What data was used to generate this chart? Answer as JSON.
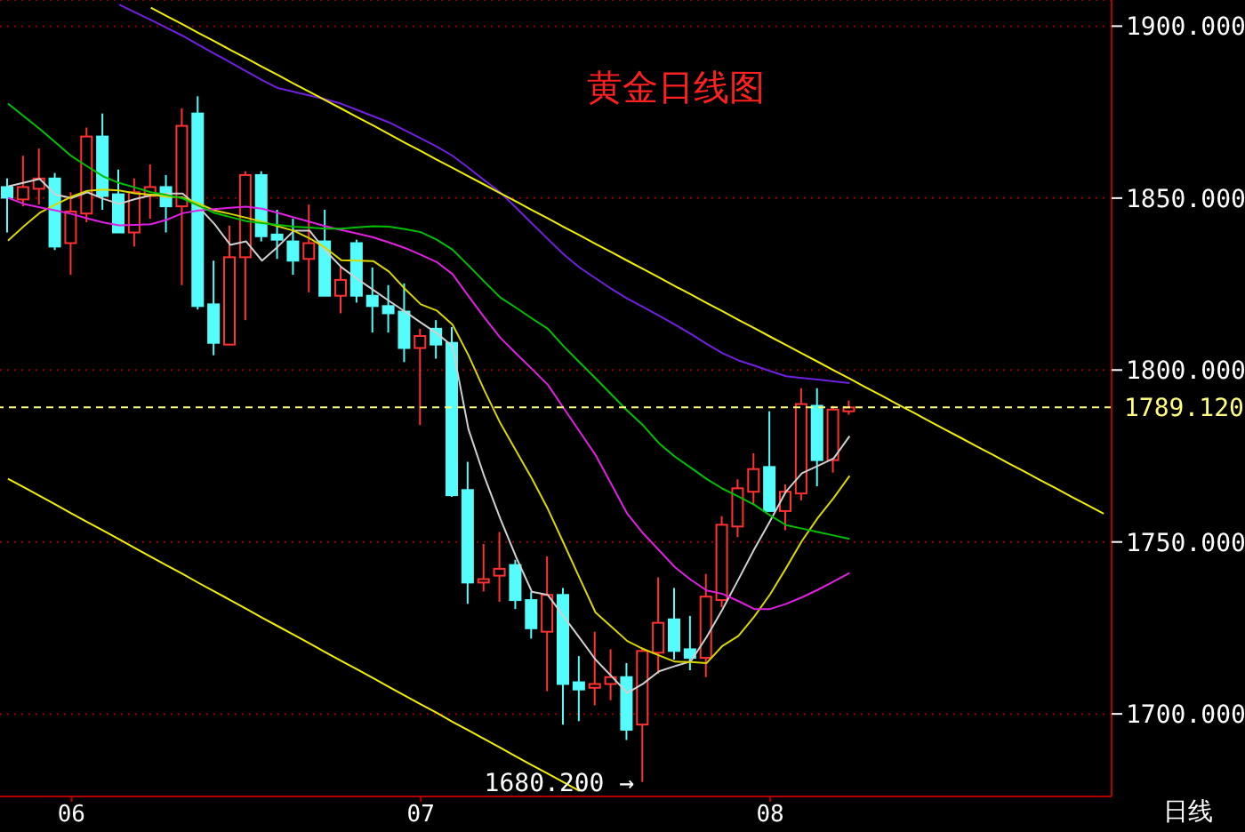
{
  "chart_data": {
    "type": "candlestick",
    "title": "黄金日线图",
    "categories": [
      null,
      null,
      null,
      null,
      "06",
      null,
      null,
      null,
      null,
      null,
      null,
      null,
      null,
      null,
      null,
      null,
      null,
      null,
      null,
      null,
      null,
      null,
      null,
      null,
      null,
      null,
      "07",
      null,
      null,
      null,
      null,
      null,
      null,
      null,
      null,
      null,
      null,
      null,
      null,
      null,
      null,
      null,
      null,
      null,
      null,
      null,
      null,
      null,
      "08",
      null,
      null,
      null,
      null,
      null,
      null,
      null,
      null,
      null,
      null,
      null,
      null,
      null,
      null,
      null,
      null,
      null,
      null,
      null,
      null,
      null
    ],
    "ohlc": [
      [
        1853.2,
        1855.7,
        1840,
        1850.1
      ],
      [
        1849.6,
        1862.3,
        1847.6,
        1853.2
      ],
      [
        1852.7,
        1864.4,
        1848.1,
        1855.7
      ],
      [
        1855.7,
        1857.3,
        1834.9,
        1835.9
      ],
      [
        1836.9,
        1851.7,
        1827.7,
        1846.1
      ],
      [
        1845.5,
        1870.5,
        1843,
        1867.9
      ],
      [
        1867.9,
        1874.6,
        1846.6,
        1850.6
      ],
      [
        1851.1,
        1858.3,
        1840,
        1840
      ],
      [
        1840,
        1855.7,
        1835.9,
        1851.7
      ],
      [
        1850.6,
        1859.8,
        1844,
        1853.2
      ],
      [
        1853.2,
        1856.7,
        1840,
        1847.6
      ],
      [
        1847.6,
        1876.1,
        1824.7,
        1871
      ],
      [
        1874.6,
        1879.6,
        1817.6,
        1818.6
      ],
      [
        1819.1,
        1831.8,
        1804.3,
        1807.9
      ],
      [
        1807.4,
        1842,
        1807.4,
        1832.8
      ],
      [
        1832.8,
        1857.8,
        1814.5,
        1856.7
      ],
      [
        1856.7,
        1857.8,
        1837.4,
        1838.9
      ],
      [
        1839.4,
        1846.6,
        1832.3,
        1837.9
      ],
      [
        1837.4,
        1844,
        1827.7,
        1831.8
      ],
      [
        1832.3,
        1848.1,
        1822.6,
        1836.9
      ],
      [
        1837.4,
        1846.6,
        1821.6,
        1821.6
      ],
      [
        1821.6,
        1830.3,
        1816.5,
        1826.2
      ],
      [
        1836.9,
        1837.9,
        1819.6,
        1821.6
      ],
      [
        1821.6,
        1829.8,
        1810.9,
        1818.6
      ],
      [
        1818.6,
        1824.7,
        1810.9,
        1816.5
      ],
      [
        1817,
        1825.2,
        1802.3,
        1806.4
      ],
      [
        1806.4,
        1812,
        1784,
        1809.9
      ],
      [
        1812,
        1814.5,
        1803.3,
        1807.4
      ],
      [
        1807.9,
        1812.5,
        1763.1,
        1763.6
      ],
      [
        1765.1,
        1773.3,
        1732,
        1738.2
      ],
      [
        1738.2,
        1749.4,
        1735.6,
        1739.2
      ],
      [
        1740.2,
        1752.9,
        1732.6,
        1742.2
      ],
      [
        1743.3,
        1744.8,
        1730.5,
        1733.1
      ],
      [
        1733.1,
        1735.6,
        1721.9,
        1724.9
      ],
      [
        1723.9,
        1745.8,
        1706.6,
        1734.6
      ],
      [
        1734.6,
        1736.6,
        1696.9,
        1708.7
      ],
      [
        1709.2,
        1716.8,
        1697.9,
        1707.1
      ],
      [
        1707.6,
        1723.9,
        1702.5,
        1708.7
      ],
      [
        1708.7,
        1718.8,
        1704,
        1710.7
      ],
      [
        1710.7,
        1714.8,
        1692.4,
        1695.4
      ],
      [
        1696.9,
        1719.3,
        1680.2,
        1718.3
      ],
      [
        1717.8,
        1739.7,
        1711.7,
        1726.5
      ],
      [
        1727.5,
        1736.6,
        1715.8,
        1718.3
      ],
      [
        1718.8,
        1728.5,
        1712.7,
        1716.3
      ],
      [
        1716.3,
        1740.7,
        1710.7,
        1734.1
      ],
      [
        1733.1,
        1757.5,
        1731,
        1755
      ],
      [
        1754.5,
        1768.2,
        1751.4,
        1765.6
      ],
      [
        1764.6,
        1775.8,
        1761,
        1771.2
      ],
      [
        1771.8,
        1788,
        1759,
        1759
      ],
      [
        1759,
        1766.7,
        1753.4,
        1764.6
      ],
      [
        1764.1,
        1794.7,
        1762.1,
        1790.1
      ],
      [
        1789.6,
        1794.7,
        1766.2,
        1773.8
      ],
      [
        1773.8,
        1789.6,
        1770.2,
        1788.5
      ],
      [
        1788,
        1791.1,
        1787,
        1789.12
      ],
      null,
      null,
      null,
      null,
      null,
      null,
      null,
      null,
      null,
      null,
      null,
      null,
      null,
      null,
      null,
      null
    ],
    "colors": [
      "#54fcfc",
      "#ff3232",
      "#ff3232",
      "#54fcfc",
      "#ff3232",
      "#ff3232",
      "#54fcfc",
      "#54fcfc",
      "#ff3232",
      "#ff3232",
      "#54fcfc",
      "#ff3232",
      "#54fcfc",
      "#54fcfc",
      "#ff3232",
      "#ff3232",
      "#54fcfc",
      "#54fcfc",
      "#54fcfc",
      "#ff3232",
      "#54fcfc",
      "#ff3232",
      "#54fcfc",
      "#54fcfc",
      "#54fcfc",
      "#54fcfc",
      "#ff3232",
      "#54fcfc",
      "#54fcfc",
      "#54fcfc",
      "#ff3232",
      "#ff3232",
      "#54fcfc",
      "#54fcfc",
      "#ff3232",
      "#54fcfc",
      "#54fcfc",
      "#ff3232",
      "#ff3232",
      "#54fcfc",
      "#ff3232",
      "#ff3232",
      "#54fcfc",
      "#54fcfc",
      "#ff3232",
      "#ff3232",
      "#ff3232",
      "#ff3232",
      "#54fcfc",
      "#ff3232",
      "#ff3232",
      "#54fcfc",
      "#ff3232",
      "#ff3232",
      null,
      null,
      null,
      null,
      null,
      null,
      null,
      null,
      null,
      null,
      null,
      null,
      null,
      null,
      null,
      null
    ],
    "series": [
      {
        "type": "line",
        "color": "#d0d0d0",
        "values": [
          1853.4,
          1854.5,
          1855.6,
          1851,
          1850,
          1851.7,
          1849.8,
          1848.3,
          1849.7,
          1850.8,
          1851.3,
          1851.3,
          1847.4,
          1842.5,
          1836.4,
          1837.4,
          1831.8,
          1835.9,
          1840.5,
          1840.5,
          1834.7,
          1829.9,
          1826.5,
          1823.3,
          1820.1,
          1817,
          1813.8,
          1810.7,
          1806.9,
          1782.8,
          1769,
          1756.8,
          1745.6,
          1735.5,
          1734.6,
          1728.3,
          1722.1,
          1715.8,
          1711,
          1706.1,
          1708.8,
          1712.4,
          1713.9,
          1715.3,
          1722.4,
          1730.4,
          1739.1,
          1747.9,
          1756.1,
          1764.7,
          1770,
          1772.1,
          1774.3,
          1780.8,
          null,
          null,
          null,
          null,
          null,
          null,
          null,
          null,
          null,
          null,
          null,
          null,
          null,
          null,
          null,
          null
        ]
      },
      {
        "type": "line",
        "color": "#d8d800",
        "values": [
          1837.6,
          1841.8,
          1845.7,
          1848.1,
          1850.4,
          1852.1,
          1852.5,
          1852.2,
          1851.4,
          1851,
          1850.4,
          1850.2,
          1848.4,
          1846.4,
          1845.4,
          1844.3,
          1843.1,
          1841.8,
          1840.5,
          1838.3,
          1835.5,
          1831.9,
          1831.8,
          1831.7,
          1828.6,
          1823.6,
          1819.1,
          1817.3,
          1813.2,
          1804.3,
          1794.1,
          1784.6,
          1776.5,
          1768.4,
          1759.6,
          1749.6,
          1739.5,
          1729.5,
          1725.4,
          1721.2,
          1718.9,
          1717,
          1715.2,
          1715.1,
          1714.8,
          1719.8,
          1722.7,
          1728.3,
          1734.8,
          1742.4,
          1750.3,
          1757,
          1762.8,
          1769.2,
          null,
          null,
          null,
          null,
          null,
          null,
          null,
          null,
          null,
          null,
          null,
          null,
          null,
          null,
          null,
          null
        ]
      },
      {
        "type": "line",
        "color": "#e020e0",
        "values": [
          1850.1,
          1848.3,
          1847.3,
          1846.4,
          1845.4,
          1844.1,
          1842.9,
          1842.1,
          1842.2,
          1842.4,
          1843.7,
          1845.6,
          1846.4,
          1846.8,
          1847.2,
          1847.5,
          1846.9,
          1845.7,
          1844.4,
          1843.1,
          1841.8,
          1840.7,
          1839.7,
          1838.6,
          1837.1,
          1835.5,
          1833.5,
          1831.4,
          1827.9,
          1821.5,
          1815.3,
          1809.4,
          1804.8,
          1800.3,
          1795.7,
          1788.9,
          1782.1,
          1775.3,
          1766.8,
          1758.2,
          1752.5,
          1747.6,
          1742.7,
          1739,
          1735.9,
          1734.9,
          1732.8,
          1730.5,
          1730.5,
          1732,
          1733.9,
          1736.1,
          1738.5,
          1741,
          null,
          null,
          null,
          null,
          null,
          null,
          null,
          null,
          null,
          null,
          null,
          null,
          null,
          null,
          null,
          null
        ]
      },
      {
        "type": "line",
        "color": "#00c000",
        "values": [
          1877.5,
          1873.8,
          1870.1,
          1866.2,
          1862.2,
          1859.2,
          1856.3,
          1854.4,
          1853.1,
          1851.7,
          1850.9,
          1849.9,
          1847.8,
          1845.7,
          1844.5,
          1843.3,
          1842.7,
          1842.2,
          1841.7,
          1841.4,
          1841.1,
          1841.1,
          1841.5,
          1841.8,
          1841.7,
          1841,
          1840.1,
          1837.9,
          1835,
          1830.4,
          1825.7,
          1821.1,
          1818.1,
          1815,
          1812,
          1806.9,
          1802.2,
          1797.6,
          1792.9,
          1788.2,
          1783.9,
          1778.7,
          1774.8,
          1771.6,
          1768.3,
          1765.5,
          1763.2,
          1760.8,
          1757.7,
          1754.9,
          1753.9,
          1752.9,
          1751.9,
          1750.9,
          null,
          null,
          null,
          null,
          null,
          null,
          null,
          null,
          null,
          null,
          null,
          null,
          null,
          null,
          null,
          null
        ]
      },
      {
        "type": "line",
        "color": "#7020e0",
        "values": [
          null,
          null,
          null,
          null,
          null,
          null,
          null,
          1906.3,
          1904,
          1901.8,
          1899.5,
          1897.2,
          1894.6,
          1892,
          1889.5,
          1886.9,
          1884.3,
          1882,
          1880.9,
          1879.8,
          1878.7,
          1877.4,
          1875.6,
          1873.8,
          1872,
          1869.7,
          1867.4,
          1865,
          1862.3,
          1858.8,
          1855.2,
          1851.7,
          1847.2,
          1842.6,
          1838.1,
          1833.6,
          1829.8,
          1826.7,
          1823.6,
          1820.8,
          1818.3,
          1815.8,
          1813.2,
          1810.5,
          1807.6,
          1804.9,
          1802.8,
          1801.3,
          1799.7,
          1798.2,
          1797.7,
          1797.2,
          1796.7,
          1796.2,
          null,
          null,
          null,
          null,
          null,
          null,
          null,
          null,
          null,
          null,
          null,
          null,
          null,
          null,
          null,
          null
        ]
      },
      {
        "type": "line",
        "color": "#f0f000",
        "values": [
          null,
          null,
          null,
          null,
          null,
          null,
          null,
          null,
          null,
          1905.4,
          1902.9,
          1900.5,
          1898,
          1895.6,
          1893.1,
          1890.7,
          1888.2,
          1885.8,
          1883.3,
          1880.9,
          1878.4,
          1876,
          1873.5,
          1871.1,
          1868.6,
          1866.1,
          1863.7,
          1861.2,
          1858.8,
          1856.3,
          1853.9,
          1851.4,
          1849,
          1846.5,
          1844.1,
          1841.6,
          1839.2,
          1836.7,
          1834.3,
          1831.8,
          1829.4,
          1826.9,
          1824.4,
          1822,
          1819.5,
          1817.1,
          1814.6,
          1812.2,
          1809.7,
          1807.3,
          1804.8,
          1802.4,
          1799.9,
          1797.5,
          1795,
          1792.6,
          1790.1,
          1787.7,
          1785.2,
          1782.7,
          1780.3,
          1777.8,
          1775.4,
          1772.9,
          1770.5,
          1768,
          1765.6,
          1763.1,
          1760.7,
          1758.2
        ]
      },
      {
        "type": "line",
        "color": "#f0f000",
        "values": [
          1768.4,
          1765.9,
          1763.4,
          1760.9,
          1758.3,
          1755.8,
          1753.3,
          1750.8,
          1748.2,
          1745.7,
          1743.2,
          1740.7,
          1738.1,
          1735.6,
          1733.1,
          1730.6,
          1728,
          1725.5,
          1723,
          1720.5,
          1717.9,
          1715.4,
          1712.9,
          1710.4,
          1707.8,
          1705.3,
          1702.8,
          1700.3,
          1697.7,
          1695.2,
          1692.7,
          1690.2,
          1687.6,
          1685.1,
          1682.6,
          1680.1,
          1677.6,
          null,
          null,
          null,
          null,
          null,
          null,
          null,
          null,
          null,
          null,
          null,
          null,
          null,
          null,
          null,
          null,
          null,
          null,
          null,
          null,
          null,
          null,
          null,
          null,
          null,
          null,
          null,
          null,
          null,
          null,
          null,
          null,
          null
        ]
      }
    ],
    "ylim": [
      1676,
      1907.6
    ],
    "yticks": [
      {
        "value": 1700,
        "label": "1700.000"
      },
      {
        "value": 1750,
        "label": "1750.000"
      },
      {
        "value": 1800,
        "label": "1800.000"
      },
      {
        "value": 1850,
        "label": "1850.000"
      },
      {
        "value": 1900,
        "label": "1900.000"
      }
    ],
    "ref_lines": [
      {
        "axis": "y",
        "value": 1789.12,
        "label": "1789.120",
        "color": "#ffff80",
        "line_style": "dashed"
      }
    ],
    "annotations": [
      {
        "text": "1680.200 →",
        "y": 1680.2
      },
      "日线"
    ],
    "grid": "y",
    "legend": false,
    "marker": "none"
  }
}
